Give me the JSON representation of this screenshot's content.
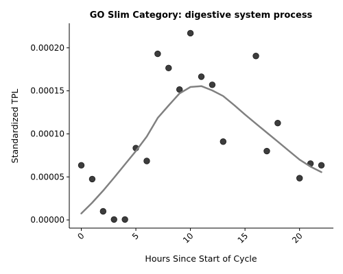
{
  "chart_data": {
    "type": "scatter",
    "title": "GO Slim Category: digestive system process",
    "xlabel": "Hours Since Start of Cycle",
    "ylabel": "Standardized TPL",
    "xlim": [
      -1.1,
      23.1
    ],
    "ylim": [
      -9.5e-06,
      0.0002285
    ],
    "x_ticks": [
      0,
      5,
      10,
      15,
      20
    ],
    "x_tick_labels": [
      "0",
      "5",
      "10",
      "15",
      "20"
    ],
    "y_ticks": [
      0,
      5e-05,
      0.0001,
      0.00015,
      0.0002
    ],
    "y_tick_labels": [
      "0.00000",
      "0.00005",
      "0.00010",
      "0.00015",
      "0.00020"
    ],
    "grid": false,
    "colors": {
      "points": "#333333",
      "trend": "#808080"
    },
    "points": [
      {
        "x": 0,
        "y": 6.35e-05
      },
      {
        "x": 1,
        "y": 4.75e-05
      },
      {
        "x": 2,
        "y": 1e-05
      },
      {
        "x": 3,
        "y": 5e-07
      },
      {
        "x": 4,
        "y": 5e-07
      },
      {
        "x": 5,
        "y": 8.35e-05
      },
      {
        "x": 6,
        "y": 6.85e-05
      },
      {
        "x": 7,
        "y": 0.000193
      },
      {
        "x": 8,
        "y": 0.0001765
      },
      {
        "x": 9,
        "y": 0.0001515
      },
      {
        "x": 10,
        "y": 0.000217
      },
      {
        "x": 11,
        "y": 0.0001665
      },
      {
        "x": 12,
        "y": 0.000157
      },
      {
        "x": 13,
        "y": 9.1e-05
      },
      {
        "x": 16,
        "y": 0.0001905
      },
      {
        "x": 17,
        "y": 8e-05
      },
      {
        "x": 18,
        "y": 0.0001125
      },
      {
        "x": 20,
        "y": 4.85e-05
      },
      {
        "x": 21,
        "y": 6.55e-05
      },
      {
        "x": 22,
        "y": 6.35e-05
      }
    ],
    "trend_line": [
      {
        "x": 0,
        "y": 7.5e-06
      },
      {
        "x": 1,
        "y": 2e-05
      },
      {
        "x": 2,
        "y": 3.4e-05
      },
      {
        "x": 3,
        "y": 4.9e-05
      },
      {
        "x": 4,
        "y": 6.45e-05
      },
      {
        "x": 5,
        "y": 8e-05
      },
      {
        "x": 6,
        "y": 9.7e-05
      },
      {
        "x": 7,
        "y": 0.0001185
      },
      {
        "x": 8,
        "y": 0.000133
      },
      {
        "x": 9,
        "y": 0.000147
      },
      {
        "x": 10,
        "y": 0.0001545
      },
      {
        "x": 11,
        "y": 0.0001555
      },
      {
        "x": 12,
        "y": 0.0001505
      },
      {
        "x": 13,
        "y": 0.000144
      },
      {
        "x": 14,
        "y": 0.0001335
      },
      {
        "x": 15,
        "y": 0.0001225
      },
      {
        "x": 16,
        "y": 0.000112
      },
      {
        "x": 17,
        "y": 0.0001015
      },
      {
        "x": 18,
        "y": 9.1e-05
      },
      {
        "x": 19,
        "y": 8.05e-05
      },
      {
        "x": 20,
        "y": 7e-05
      },
      {
        "x": 21,
        "y": 6.2e-05
      },
      {
        "x": 22,
        "y": 5.55e-05
      }
    ]
  }
}
